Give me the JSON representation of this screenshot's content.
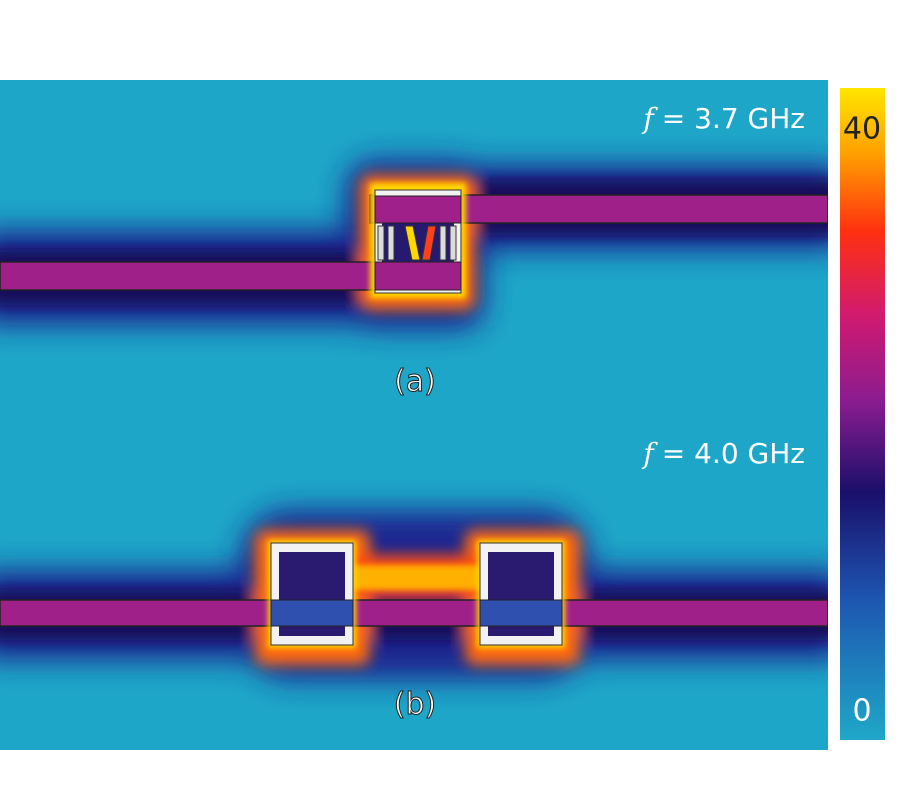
{
  "panels": [
    {
      "label": "(a)",
      "frequency_symbol": "f",
      "frequency_text": "= 3.7 GHz"
    },
    {
      "label": "(b)",
      "frequency_symbol": "f",
      "frequency_text": "= 4.0 GHz"
    }
  ],
  "colorbar": {
    "ticks": [
      0,
      40
    ]
  }
}
